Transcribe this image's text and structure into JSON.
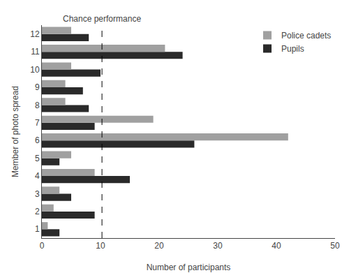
{
  "chart_data": {
    "type": "bar",
    "orientation": "horizontal",
    "categories": [
      "1",
      "2",
      "3",
      "4",
      "5",
      "6",
      "7",
      "8",
      "9",
      "10",
      "11",
      "12"
    ],
    "series": [
      {
        "name": "Police cadets",
        "color": "#a0a0a0",
        "values": [
          1,
          2,
          3,
          9,
          5,
          42,
          19,
          4,
          4,
          5,
          21,
          5
        ]
      },
      {
        "name": "Pupils",
        "color": "#2a2a2a",
        "values": [
          3,
          9,
          5,
          15,
          3,
          26,
          9,
          8,
          7,
          10,
          24,
          8
        ]
      }
    ],
    "xlabel": "Number of participants",
    "ylabel": "Member of photo spread",
    "xlim": [
      0,
      50
    ],
    "xticks": [
      0,
      10,
      20,
      30,
      40,
      50
    ],
    "annotations": [
      {
        "text": "Chance performance",
        "x": 10.25
      }
    ],
    "legend": "upper right",
    "grid": false
  }
}
